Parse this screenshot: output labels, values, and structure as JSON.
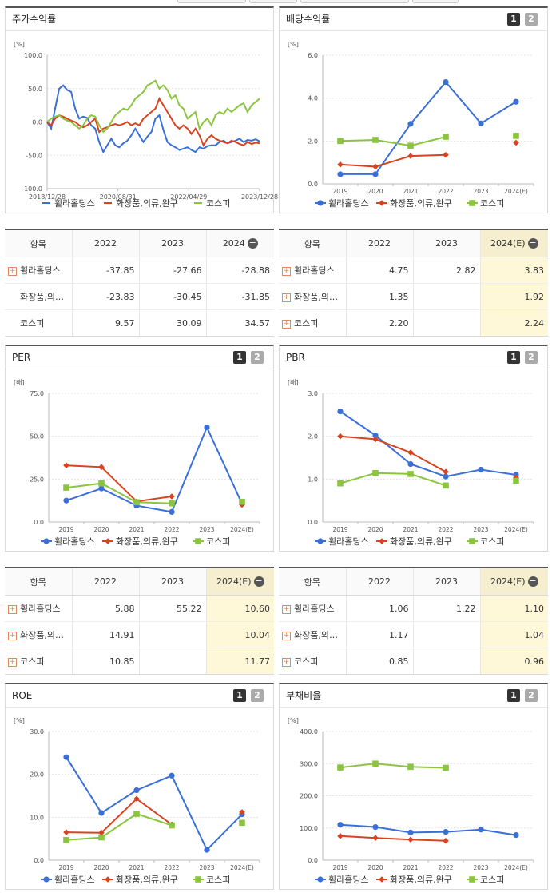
{
  "colors": {
    "holdings": "#3a6fd8",
    "cosmetics": "#d8431f",
    "kospi": "#8bc53f"
  },
  "legend": [
    "휠라홀딩스",
    "화장품,의류,완구",
    "코스피"
  ],
  "panels": {
    "return": {
      "title": "주가수익률"
    },
    "dividend": {
      "title": "배당수익률",
      "pages": [
        "1",
        "2"
      ]
    },
    "per": {
      "title": "PER",
      "pages": [
        "1",
        "2"
      ]
    },
    "pbr": {
      "title": "PBR",
      "pages": [
        "1",
        "2"
      ]
    },
    "roe": {
      "title": "ROE",
      "pages": [
        "1",
        "2"
      ]
    },
    "debt": {
      "title": "부채비율",
      "pages": [
        "1",
        "2"
      ]
    }
  },
  "tables": {
    "return": {
      "headers": [
        "항목",
        "2022",
        "2023",
        "2024"
      ],
      "rows": [
        {
          "name": "휠라홀딩스",
          "plus": true,
          "values": [
            "-37.85",
            "-27.66",
            "-28.88"
          ]
        },
        {
          "name": "화장품,의…",
          "plus": false,
          "values": [
            "-23.83",
            "-30.45",
            "-31.85"
          ]
        },
        {
          "name": "코스피",
          "plus": false,
          "values": [
            "9.57",
            "30.09",
            "34.57"
          ]
        }
      ]
    },
    "dividend": {
      "headers": [
        "항목",
        "2022",
        "2023",
        "2024(E)"
      ],
      "rows": [
        {
          "name": "휠라홀딩스",
          "plus": true,
          "values": [
            "4.75",
            "2.82",
            "3.83"
          ]
        },
        {
          "name": "화장품,의…",
          "plus": true,
          "values": [
            "1.35",
            "",
            "1.92"
          ]
        },
        {
          "name": "코스피",
          "plus": true,
          "values": [
            "2.20",
            "",
            "2.24"
          ]
        }
      ]
    },
    "per": {
      "headers": [
        "항목",
        "2022",
        "2023",
        "2024(E)"
      ],
      "rows": [
        {
          "name": "휠라홀딩스",
          "plus": true,
          "values": [
            "5.88",
            "55.22",
            "10.60"
          ]
        },
        {
          "name": "화장품,의…",
          "plus": true,
          "values": [
            "14.91",
            "",
            "10.04"
          ]
        },
        {
          "name": "코스피",
          "plus": true,
          "values": [
            "10.85",
            "",
            "11.77"
          ]
        }
      ]
    },
    "pbr": {
      "headers": [
        "항목",
        "2022",
        "2023",
        "2024(E)"
      ],
      "rows": [
        {
          "name": "휠라홀딩스",
          "plus": true,
          "values": [
            "1.06",
            "1.22",
            "1.10"
          ]
        },
        {
          "name": "화장품,의…",
          "plus": true,
          "values": [
            "1.17",
            "",
            "1.04"
          ]
        },
        {
          "name": "코스피",
          "plus": true,
          "values": [
            "0.85",
            "",
            "0.96"
          ]
        }
      ]
    }
  },
  "chart_data": [
    {
      "id": "return",
      "type": "line",
      "title": "주가수익률",
      "unit": "[%]",
      "ylim": [
        -100,
        100
      ],
      "yticks": [
        "100.0",
        "50.0",
        "0.0",
        "-50.0",
        "-100.0"
      ],
      "xticks": [
        "2018/12/28",
        "2020/08/31",
        "2022/04/29",
        "2023/12/28"
      ],
      "series": [
        {
          "name": "휠라홀딩스",
          "values": [
            0,
            -10,
            20,
            50,
            55,
            48,
            45,
            20,
            5,
            8,
            6,
            -5,
            -10,
            -30,
            -45,
            -35,
            -25,
            -35,
            -38,
            -32,
            -28,
            -20,
            -10,
            -20,
            -30,
            -22,
            -15,
            5,
            10,
            -12,
            -30,
            -35,
            -38,
            -42,
            -40,
            -38,
            -42,
            -45,
            -38,
            -40,
            -36,
            -35,
            -35,
            -30,
            -28,
            -32,
            -30,
            -28,
            -25,
            -30,
            -27,
            -28,
            -26,
            -29
          ]
        },
        {
          "name": "화장품,의류,완구",
          "values": [
            0,
            -5,
            5,
            10,
            8,
            5,
            2,
            0,
            -5,
            -8,
            -5,
            0,
            5,
            -15,
            -10,
            -8,
            -5,
            -3,
            -5,
            -3,
            0,
            -5,
            -2,
            -5,
            5,
            10,
            15,
            20,
            35,
            25,
            15,
            5,
            -5,
            -10,
            -5,
            -10,
            -18,
            -10,
            -20,
            -35,
            -25,
            -20,
            -25,
            -28,
            -30,
            -32,
            -28,
            -30,
            -33,
            -35,
            -30,
            -33,
            -31,
            -32
          ]
        },
        {
          "name": "코스피",
          "values": [
            0,
            5,
            8,
            10,
            5,
            2,
            0,
            -5,
            -10,
            -5,
            5,
            10,
            8,
            -5,
            -15,
            -10,
            0,
            10,
            15,
            20,
            18,
            25,
            35,
            40,
            45,
            55,
            58,
            62,
            50,
            55,
            48,
            35,
            40,
            25,
            20,
            5,
            10,
            15,
            -10,
            0,
            5,
            -5,
            10,
            15,
            12,
            20,
            15,
            20,
            25,
            28,
            15,
            25,
            30,
            35
          ]
        }
      ]
    },
    {
      "id": "dividend",
      "type": "line",
      "title": "배당수익률",
      "unit": "[%]",
      "ylim": [
        0,
        6
      ],
      "yticks": [
        "6.0",
        "4.0",
        "2.0",
        "0.0"
      ],
      "categories": [
        "2019",
        "2020",
        "2021",
        "2022",
        "2023",
        "2024(E)"
      ],
      "series": [
        {
          "name": "휠라홀딩스",
          "values": [
            0.45,
            0.45,
            2.8,
            4.75,
            2.82,
            3.83
          ]
        },
        {
          "name": "화장품,의류,완구",
          "values": [
            0.9,
            0.8,
            1.3,
            1.35,
            null,
            1.92
          ]
        },
        {
          "name": "코스피",
          "values": [
            2.0,
            2.05,
            1.78,
            2.2,
            null,
            2.24
          ]
        }
      ]
    },
    {
      "id": "per",
      "type": "line",
      "title": "PER",
      "unit": "[배]",
      "ylim": [
        0,
        75
      ],
      "yticks": [
        "75.0",
        "50.0",
        "25.0",
        "0.0"
      ],
      "categories": [
        "2019",
        "2020",
        "2021",
        "2022",
        "2023",
        "2024(E)"
      ],
      "series": [
        {
          "name": "휠라홀딩스",
          "values": [
            12.5,
            19.5,
            9.5,
            5.88,
            55.22,
            10.6
          ]
        },
        {
          "name": "화장품,의류,완구",
          "values": [
            33,
            32,
            12,
            14.91,
            null,
            10.04
          ]
        },
        {
          "name": "코스피",
          "values": [
            20,
            22.5,
            11.5,
            10.85,
            null,
            11.77
          ]
        }
      ]
    },
    {
      "id": "pbr",
      "type": "line",
      "title": "PBR",
      "unit": "[배]",
      "ylim": [
        0,
        3
      ],
      "yticks": [
        "3.0",
        "2.0",
        "1.0",
        "0.0"
      ],
      "categories": [
        "2019",
        "2020",
        "2021",
        "2022",
        "2023",
        "2024(E)"
      ],
      "series": [
        {
          "name": "휠라홀딩스",
          "values": [
            2.58,
            2.02,
            1.35,
            1.06,
            1.22,
            1.1
          ]
        },
        {
          "name": "화장품,의류,완구",
          "values": [
            2.0,
            1.93,
            1.62,
            1.17,
            null,
            1.04
          ]
        },
        {
          "name": "코스피",
          "values": [
            0.9,
            1.14,
            1.12,
            0.85,
            null,
            0.96
          ]
        }
      ]
    },
    {
      "id": "roe",
      "type": "line",
      "title": "ROE",
      "unit": "[%]",
      "ylim": [
        0,
        30
      ],
      "yticks": [
        "30.0",
        "20.0",
        "10.0",
        "0.0"
      ],
      "categories": [
        "2019",
        "2020",
        "2021",
        "2022",
        "2023",
        "2024(E)"
      ],
      "series": [
        {
          "name": "휠라홀딩스",
          "values": [
            24,
            11,
            16.3,
            19.7,
            2.4,
            10.7
          ]
        },
        {
          "name": "화장품,의류,완구",
          "values": [
            6.5,
            6.4,
            14.3,
            8.3,
            null,
            11.2
          ]
        },
        {
          "name": "코스피",
          "values": [
            4.7,
            5.3,
            10.8,
            8.1,
            null,
            8.7
          ]
        }
      ]
    },
    {
      "id": "debt",
      "type": "line",
      "title": "부채비율",
      "unit": "[%]",
      "ylim": [
        0,
        400
      ],
      "yticks": [
        "400.0",
        "300.0",
        "200.0",
        "100.0",
        "0.0"
      ],
      "categories": [
        "2019",
        "2020",
        "2021",
        "2022",
        "2023",
        "2024(E)"
      ],
      "series": [
        {
          "name": "휠라홀딩스",
          "values": [
            110,
            103,
            86,
            88,
            95,
            78
          ]
        },
        {
          "name": "화장품,의류,완구",
          "values": [
            75,
            69,
            64,
            60,
            null,
            null
          ]
        },
        {
          "name": "코스피",
          "values": [
            288,
            300,
            290,
            287,
            null,
            null
          ]
        }
      ]
    }
  ]
}
